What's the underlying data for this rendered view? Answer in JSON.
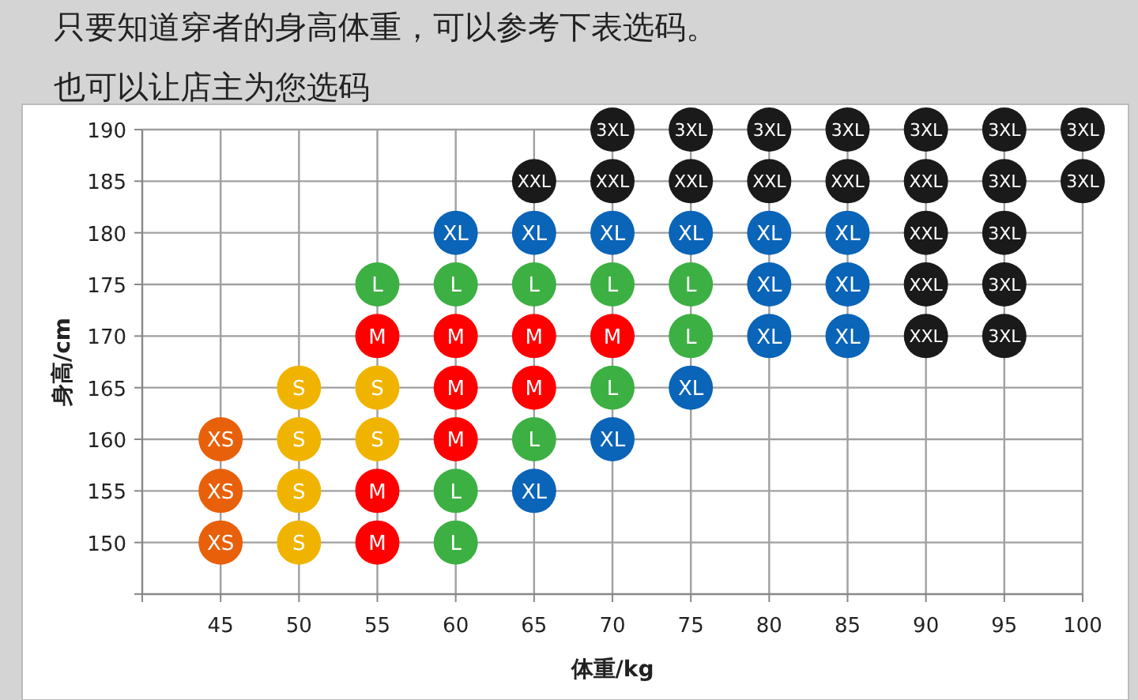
{
  "chart_data": {
    "type": "scatter",
    "title": "只要知道穿者的身高体重，可以参考下表选码。",
    "subtitle": "也可以让店主为您选码",
    "xlabel": "体重/kg",
    "ylabel": "身高/cm",
    "xlim": [
      40,
      100
    ],
    "xticks": [
      {
        "value": 40,
        "label": null
      },
      45,
      50,
      55,
      60,
      65,
      70,
      75,
      80,
      85,
      90,
      95,
      100
    ],
    "ylim": [
      145,
      190
    ],
    "yticks": [
      {
        "value": 145,
        "label": null
      },
      150,
      155,
      160,
      165,
      170,
      175,
      180,
      185,
      190
    ],
    "grid": true,
    "legend": false,
    "marker": "circle",
    "series": [
      {
        "name": "XS",
        "color": "#e8600a",
        "x": [
          45,
          45,
          45
        ],
        "values": [
          160,
          155,
          150
        ]
      },
      {
        "name": "S",
        "color": "#f0b400",
        "x": [
          50,
          50,
          50,
          50,
          55,
          55
        ],
        "values": [
          165,
          160,
          155,
          150,
          165,
          160
        ]
      },
      {
        "name": "M",
        "color": "#ff0000",
        "x": [
          55,
          55,
          55,
          60,
          60,
          60,
          65,
          65,
          70
        ],
        "values": [
          170,
          155,
          150,
          170,
          165,
          160,
          170,
          165,
          170
        ]
      },
      {
        "name": "L",
        "color": "#3cb043",
        "x": [
          55,
          60,
          60,
          60,
          65,
          65,
          70,
          70,
          75,
          75
        ],
        "values": [
          175,
          175,
          155,
          150,
          175,
          160,
          175,
          165,
          175,
          170
        ]
      },
      {
        "name": "XL",
        "color": "#0a64b8",
        "x": [
          60,
          65,
          65,
          70,
          70,
          75,
          75,
          80,
          80,
          80,
          85,
          85,
          85
        ],
        "values": [
          180,
          180,
          155,
          180,
          160,
          180,
          165,
          180,
          175,
          170,
          180,
          175,
          170
        ]
      },
      {
        "name": "XXL",
        "color": "#1a1a1a",
        "x": [
          65,
          70,
          75,
          80,
          85,
          90,
          90,
          90,
          90
        ],
        "values": [
          185,
          185,
          185,
          185,
          185,
          185,
          180,
          175,
          170
        ]
      },
      {
        "name": "3XL",
        "color": "#1a1a1a",
        "x": [
          70,
          75,
          80,
          85,
          90,
          95,
          100,
          95,
          100,
          95,
          95,
          95
        ],
        "values": [
          190,
          190,
          190,
          190,
          190,
          190,
          190,
          185,
          185,
          180,
          175,
          170
        ]
      }
    ]
  }
}
